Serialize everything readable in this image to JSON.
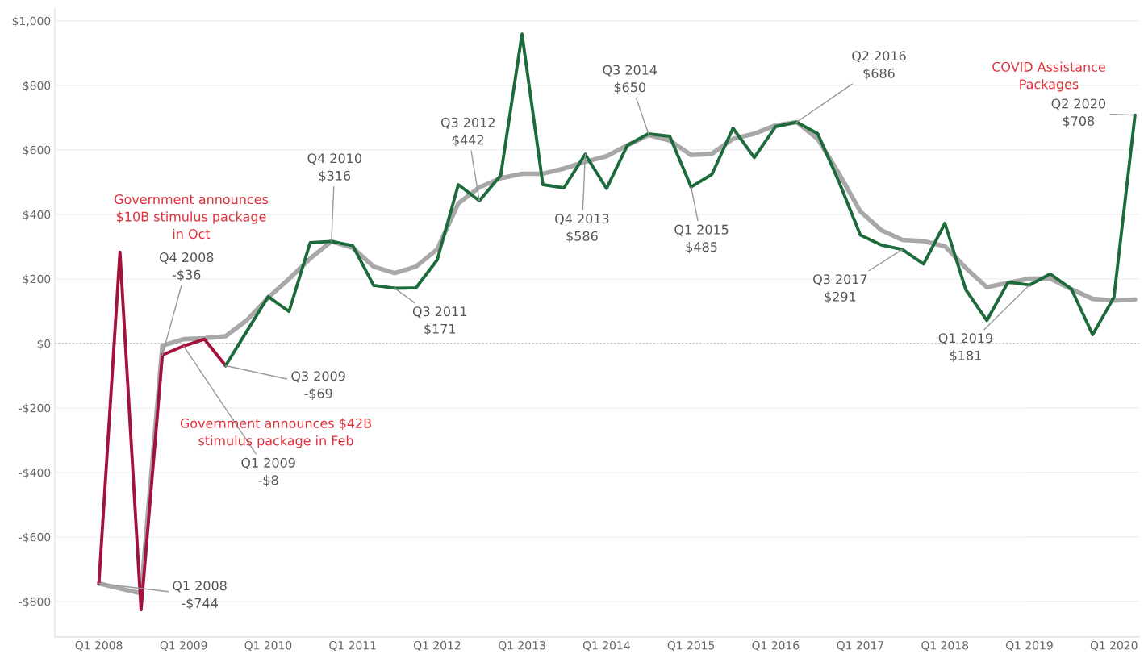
{
  "chart_data": {
    "type": "line",
    "x": [
      "2008-01",
      "2008-04",
      "2008-07",
      "2008-10",
      "2009-01",
      "2009-04",
      "2009-07",
      "2009-10",
      "2010-01",
      "2010-04",
      "2010-07",
      "2010-10",
      "2011-01",
      "2011-04",
      "2011-07",
      "2011-10",
      "2012-01",
      "2012-04",
      "2012-07",
      "2012-10",
      "2013-01",
      "2013-04",
      "2013-07",
      "2013-10",
      "2014-01",
      "2014-04",
      "2014-07",
      "2014-10",
      "2015-01",
      "2015-04",
      "2015-07",
      "2015-10",
      "2016-01",
      "2016-04",
      "2016-07",
      "2016-10",
      "2017-01",
      "2017-04",
      "2017-07",
      "2017-10",
      "2018-01",
      "2018-04",
      "2018-07",
      "2018-10",
      "2019-01",
      "2019-04",
      "2019-07",
      "2019-10",
      "2020-01",
      "2020-04"
    ],
    "series": [
      {
        "color": "#a8a8a8",
        "values": [
          -744,
          -760,
          -775,
          -7,
          13,
          16,
          22,
          72,
          142,
          200,
          263,
          316,
          296,
          238,
          218,
          238,
          292,
          434,
          484,
          512,
          526,
          526,
          542,
          563,
          580,
          614,
          646,
          629,
          584,
          588,
          634,
          650,
          676,
          686,
          634,
          526,
          409,
          351,
          321,
          317,
          301,
          234,
          174,
          188,
          201,
          201,
          168,
          138,
          133,
          136
        ]
      },
      {
        "color": "#a3123a",
        "values": [
          -744,
          283,
          -826,
          -36,
          -8,
          13,
          -69,
          null,
          null,
          null,
          null,
          null,
          null,
          null,
          null,
          null,
          null,
          null,
          null,
          null,
          null,
          null,
          null,
          null,
          null,
          null,
          null,
          null,
          null,
          null,
          null,
          null,
          null,
          null,
          null,
          null,
          null,
          null,
          null,
          null,
          null,
          null,
          null,
          null,
          null,
          null,
          null,
          null,
          null,
          null
        ]
      },
      {
        "color": "#1d6b3a",
        "values": [
          null,
          null,
          null,
          null,
          null,
          null,
          -69,
          38,
          145,
          99,
          312,
          316,
          303,
          180,
          171,
          172,
          259,
          492,
          442,
          521,
          959,
          492,
          482,
          586,
          480,
          614,
          650,
          642,
          485,
          524,
          667,
          576,
          672,
          686,
          650,
          500,
          336,
          305,
          291,
          246,
          372,
          167,
          71,
          190,
          181,
          215,
          169,
          27,
          143,
          708
        ]
      }
    ],
    "xlim": [
      "2007-07-10",
      "2020-05-05"
    ],
    "xticks": [
      {
        "value": "2008-01",
        "label": "Q1 2008"
      },
      {
        "value": "2009-01",
        "label": "Q1 2009"
      },
      {
        "value": "2010-01",
        "label": "Q1 2010"
      },
      {
        "value": "2011-01",
        "label": "Q1 2011"
      },
      {
        "value": "2012-01",
        "label": "Q1 2012"
      },
      {
        "value": "2013-01",
        "label": "Q1 2013"
      },
      {
        "value": "2014-01",
        "label": "Q1 2014"
      },
      {
        "value": "2015-01",
        "label": "Q1 2015"
      },
      {
        "value": "2016-01",
        "label": "Q1 2016"
      },
      {
        "value": "2017-01",
        "label": "Q1 2017"
      },
      {
        "value": "2018-01",
        "label": "Q1 2018"
      },
      {
        "value": "2019-01",
        "label": "Q1 2019"
      },
      {
        "value": "2020-01",
        "label": "Q1 2020"
      }
    ],
    "ylim": [
      -910,
      1040
    ],
    "yticks": [
      {
        "value": -800,
        "label": "-$800"
      },
      {
        "value": -600,
        "label": "-$600"
      },
      {
        "value": -400,
        "label": "-$400"
      },
      {
        "value": -200,
        "label": "-$200"
      },
      {
        "value": 0,
        "label": "$0"
      },
      {
        "value": 200,
        "label": "$200"
      },
      {
        "value": 400,
        "label": "$400"
      },
      {
        "value": 600,
        "label": "$600"
      },
      {
        "value": 800,
        "label": "$800"
      },
      {
        "value": 1000,
        "label": "$1,000"
      }
    ],
    "grid": "y",
    "ref_lines": [
      {
        "axis": "y",
        "value": 0,
        "color": "#bbbbbb",
        "line_style": "dotted"
      }
    ],
    "annotations": [
      {
        "text": "Q1 2008\n-$744",
        "x": "2008-01",
        "y": -744
      },
      "Government announces\n$10B stimulus package\nin Oct",
      {
        "text": "Q4 2008\n-$36",
        "x": "2008-10",
        "y": -36
      },
      "Government announces $42B\nstimulus package in Feb",
      {
        "text": "Q1 2009\n-$8",
        "x": "2009-01",
        "y": -8
      },
      {
        "text": "Q3 2009\n-$69",
        "x": "2009-07",
        "y": -69
      },
      {
        "text": "Q4 2010\n$316",
        "x": "2010-10",
        "y": 316
      },
      {
        "text": "Q3 2011\n$171",
        "x": "2011-07",
        "y": 171
      },
      {
        "text": "Q3 2012\n$442",
        "x": "2012-07",
        "y": 442
      },
      {
        "text": "Q4 2013\n$586",
        "x": "2013-10",
        "y": 586
      },
      {
        "text": "Q3 2014\n$650",
        "x": "2014-07",
        "y": 650
      },
      {
        "text": "Q1 2015\n$485",
        "x": "2015-01",
        "y": 485
      },
      {
        "text": "Q2 2016\n$686",
        "x": "2016-04",
        "y": 686
      },
      {
        "text": "Q3 2017\n$291",
        "x": "2017-07",
        "y": 291
      },
      {
        "text": "Q1 2019\n$181",
        "x": "2019-01",
        "y": 181
      },
      "COVID Assistance\nPackages",
      {
        "text": "Q2 2020\n$708",
        "x": "2020-04",
        "y": 708
      }
    ]
  }
}
